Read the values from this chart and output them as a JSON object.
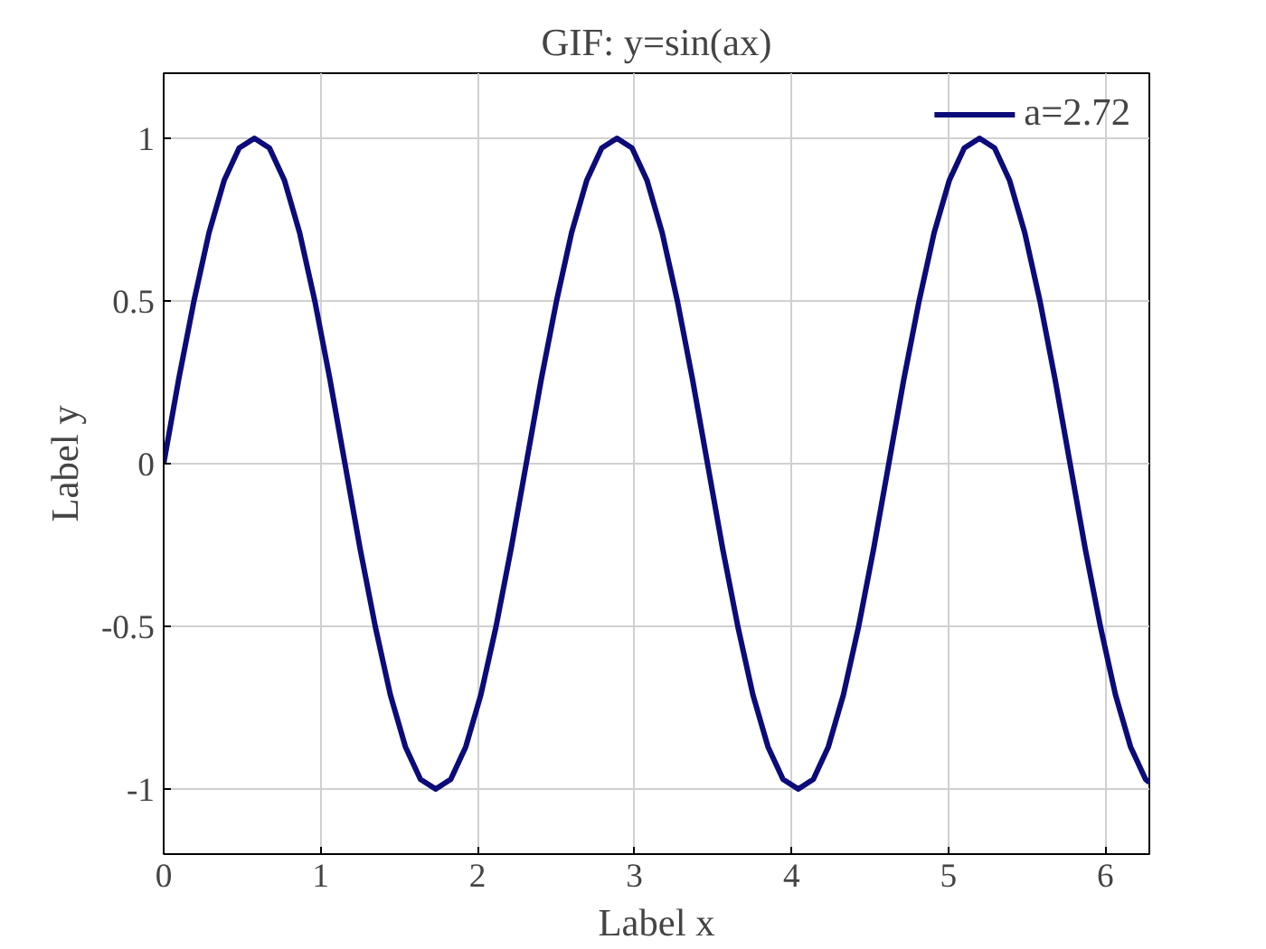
{
  "chart_data": {
    "type": "line",
    "title": "GIF: y=sin(ax)",
    "xlabel": "Label x",
    "ylabel": "Label y",
    "xlim": [
      0,
      6.28
    ],
    "xticks": [
      0,
      1,
      2,
      3,
      4,
      5,
      6
    ],
    "ylim": [
      -1.2,
      1.2
    ],
    "yticks": [
      -1,
      -0.5,
      0,
      0.5,
      1
    ],
    "grid": true,
    "legend": "top right",
    "line_style": "solid",
    "marker": "none",
    "series": [
      {
        "name": "a=2.72",
        "color": "#0b0b7a",
        "x": [
          0,
          0.096,
          0.193,
          0.289,
          0.385,
          0.481,
          0.578,
          0.674,
          0.77,
          0.866,
          0.963,
          1.059,
          1.155,
          1.251,
          1.348,
          1.444,
          1.54,
          1.636,
          1.733,
          1.829,
          1.925,
          2.021,
          2.118,
          2.214,
          2.31,
          2.406,
          2.503,
          2.599,
          2.695,
          2.791,
          2.888,
          2.984,
          3.08,
          3.176,
          3.273,
          3.369,
          3.465,
          3.561,
          3.658,
          3.754,
          3.85,
          3.946,
          4.043,
          4.139,
          4.235,
          4.331,
          4.428,
          4.524,
          4.62,
          4.716,
          4.813,
          4.909,
          5.005,
          5.101,
          5.198,
          5.294,
          5.39,
          5.486,
          5.583,
          5.679,
          5.775,
          5.871,
          5.968,
          6.064,
          6.16,
          6.256,
          6.28
        ],
        "values": [
          0,
          0.26,
          0.5,
          0.71,
          0.87,
          0.97,
          1,
          0.97,
          0.87,
          0.71,
          0.5,
          0.26,
          0,
          -0.26,
          -0.5,
          -0.71,
          -0.87,
          -0.97,
          -1,
          -0.97,
          -0.87,
          -0.71,
          -0.5,
          -0.26,
          0,
          0.26,
          0.5,
          0.71,
          0.87,
          0.97,
          1,
          0.97,
          0.87,
          0.71,
          0.5,
          0.26,
          0,
          -0.26,
          -0.5,
          -0.71,
          -0.87,
          -0.97,
          -1,
          -0.97,
          -0.87,
          -0.71,
          -0.5,
          -0.26,
          0,
          0.26,
          0.5,
          0.71,
          0.87,
          0.97,
          1,
          0.97,
          0.87,
          0.71,
          0.5,
          0.26,
          0,
          -0.26,
          -0.5,
          -0.71,
          -0.87,
          -0.97,
          -0.98
        ]
      }
    ]
  }
}
